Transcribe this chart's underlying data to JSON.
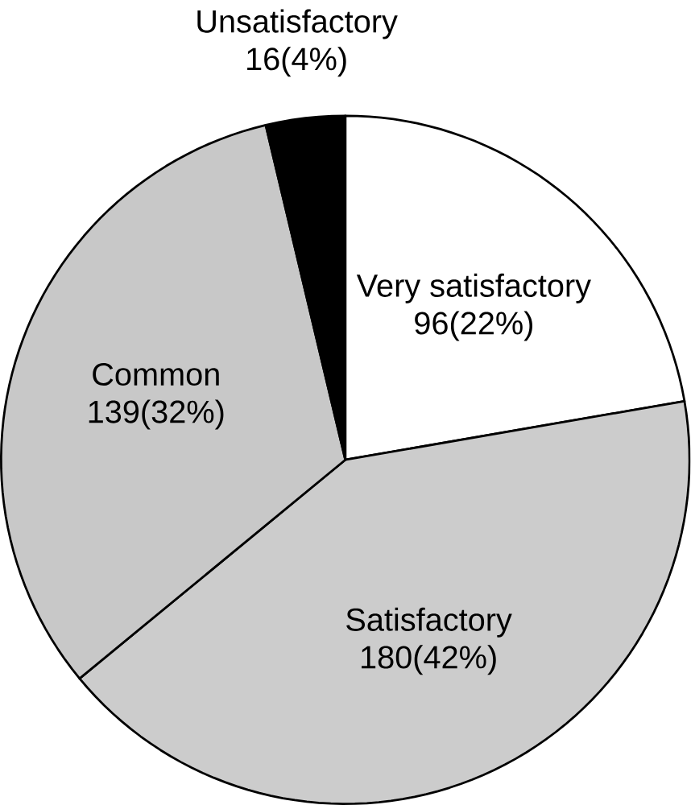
{
  "chart_data": {
    "type": "pie",
    "categories": [
      "Very satisfactory",
      "Satisfactory",
      "Common",
      "Unsatisfactory"
    ],
    "values": [
      96,
      180,
      139,
      16
    ],
    "value_labels": [
      "96(22%)",
      "180(42%)",
      "139(32%)",
      "16(4%)"
    ],
    "colors": [
      "#ffffff",
      "#cccccc",
      "#c8c8c8",
      "#000000"
    ]
  }
}
